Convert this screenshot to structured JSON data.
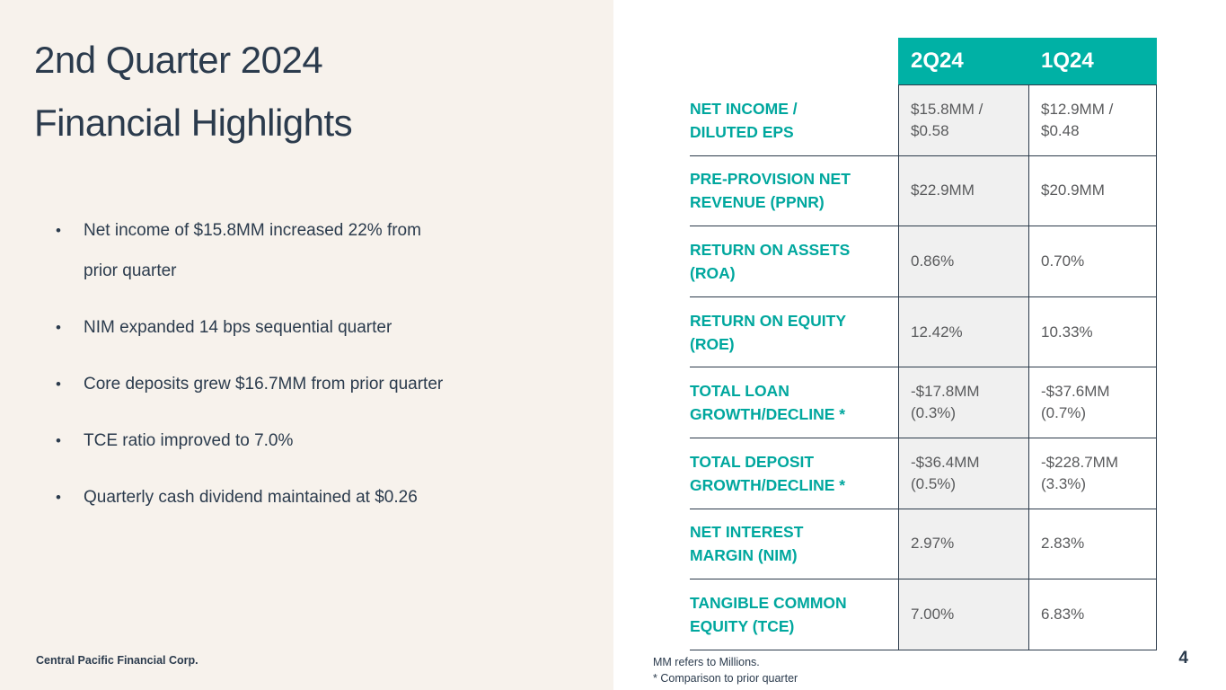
{
  "slide": {
    "title_line1": "2nd Quarter 2024",
    "title_line2": "Financial Highlights",
    "bullet_glyph": "•",
    "bullets": [
      "Net income of $15.8MM increased 22% from\nprior quarter",
      "NIM expanded 14 bps sequential quarter",
      "Core deposits grew $16.7MM from prior quarter",
      "TCE ratio improved to 7.0%",
      "Quarterly cash dividend maintained at $0.26"
    ],
    "corp_name": "Central Pacific Financial Corp.",
    "footnote_line1": "MM refers to Millions.",
    "footnote_line2": "* Comparison to prior quarter",
    "page_number": "4"
  },
  "table": {
    "columns": [
      "2Q24",
      "1Q24"
    ],
    "rows": [
      {
        "label": "NET INCOME /\nDILUTED EPS",
        "q2": "$15.8MM /\n$0.58",
        "q1": "$12.9MM /\n$0.48"
      },
      {
        "label": "PRE-PROVISION NET\nREVENUE (PPNR)",
        "q2": "$22.9MM",
        "q1": "$20.9MM"
      },
      {
        "label": "RETURN ON ASSETS\n(ROA)",
        "q2": "0.86%",
        "q1": "0.70%"
      },
      {
        "label": "RETURN ON EQUITY\n(ROE)",
        "q2": "12.42%",
        "q1": "10.33%"
      },
      {
        "label": "TOTAL LOAN\nGROWTH/DECLINE *",
        "q2": "-$17.8MM\n(0.3%)",
        "q1": "-$37.6MM\n(0.7%)"
      },
      {
        "label": "TOTAL DEPOSIT\nGROWTH/DECLINE *",
        "q2": "-$36.4MM\n(0.5%)",
        "q1": "-$228.7MM\n(3.3%)"
      },
      {
        "label": "NET INTEREST\nMARGIN (NIM)",
        "q2": "2.97%",
        "q1": "2.83%"
      },
      {
        "label": "TANGIBLE COMMON\nEQUITY (TCE)",
        "q2": "7.00%",
        "q1": "6.83%"
      }
    ]
  },
  "colors": {
    "panel_cream": "#f7f2ec",
    "navy_text": "#2b3b4d",
    "teal_header": "#00b1a5",
    "teal_label": "#00a79e",
    "gray_cell": "#f0f0f0",
    "value_text": "#595a5c",
    "border": "#2b3a4a"
  }
}
